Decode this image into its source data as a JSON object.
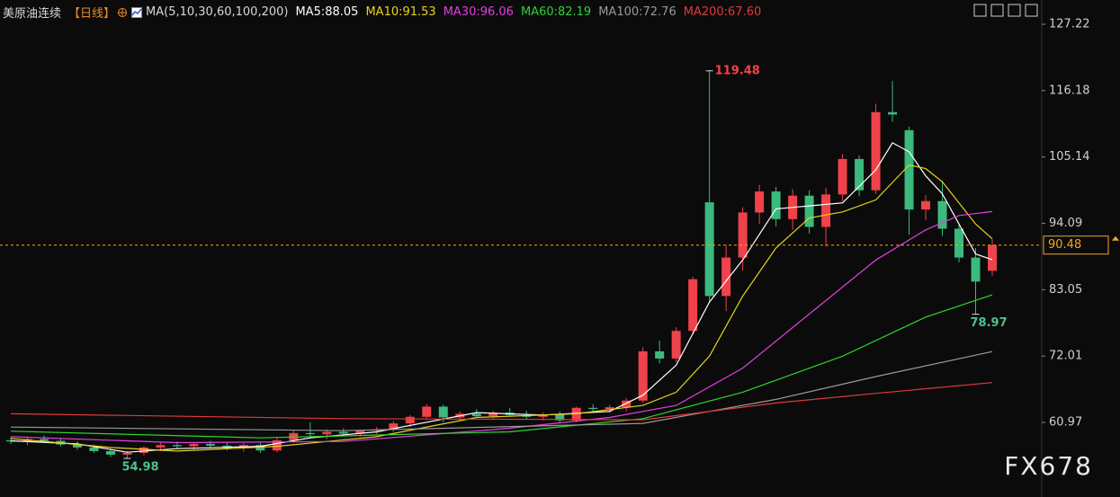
{
  "header": {
    "title": "美原油连续",
    "period": "【日线】",
    "ma_title": "MA(5,10,30,60,100,200)"
  },
  "chart_data": {
    "type": "candlestick",
    "categories": [
      null,
      null,
      null,
      null,
      null,
      null,
      null,
      null,
      null,
      null,
      null,
      null,
      null,
      null,
      null,
      null,
      null,
      null,
      null,
      null,
      null,
      null,
      null,
      null,
      null,
      null,
      null,
      null,
      null,
      null,
      null,
      null,
      null,
      null,
      null,
      null,
      null,
      null,
      null,
      null,
      null,
      null,
      null,
      null,
      null,
      null,
      null,
      null,
      null,
      null,
      null,
      null,
      null,
      null,
      null,
      null,
      null,
      null,
      null,
      null
    ],
    "open": [
      58.0,
      57.8,
      58.2,
      57.9,
      57.3,
      56.8,
      56.2,
      55.6,
      55.9,
      56.8,
      57.2,
      57.0,
      57.4,
      57.1,
      56.7,
      57.2,
      56.3,
      58.0,
      59.2,
      59.0,
      59.4,
      59.1,
      59.6,
      59.8,
      60.8,
      61.9,
      63.6,
      61.8,
      62.4,
      62.0,
      62.6,
      62.2,
      61.9,
      62.3,
      61.3,
      63.4,
      63.2,
      63.5,
      64.6,
      72.8,
      71.6,
      76.2,
      97.6,
      82.0,
      88.4,
      95.9,
      99.4,
      94.8,
      98.7,
      93.5,
      98.9,
      104.8,
      99.6,
      112.6,
      109.6,
      96.4,
      97.8,
      93.2,
      88.4,
      86.2
    ],
    "high": [
      58.5,
      58.6,
      58.8,
      58.4,
      57.8,
      57.2,
      56.6,
      56.2,
      57.0,
      57.6,
      57.8,
      57.6,
      57.9,
      57.6,
      57.5,
      57.6,
      58.4,
      59.6,
      61.0,
      59.8,
      60.0,
      59.8,
      60.2,
      61.2,
      62.2,
      64.0,
      63.9,
      62.8,
      63.2,
      62.9,
      63.4,
      62.9,
      62.6,
      62.8,
      63.6,
      64.0,
      63.9,
      65.0,
      73.5,
      74.6,
      76.8,
      85.2,
      119.48,
      90.5,
      96.8,
      100.5,
      100.2,
      99.8,
      99.6,
      100.0,
      105.6,
      105.4,
      114.0,
      117.8,
      110.2,
      98.8,
      101.2,
      94.0,
      90.0,
      91.4
    ],
    "low": [
      57.4,
      57.2,
      57.6,
      57.0,
      56.4,
      55.9,
      55.2,
      54.98,
      55.5,
      56.2,
      56.6,
      56.4,
      56.8,
      56.3,
      56.1,
      55.9,
      56.0,
      57.6,
      58.6,
      58.2,
      58.8,
      58.6,
      59.0,
      59.4,
      60.2,
      61.5,
      61.0,
      61.2,
      61.8,
      61.6,
      61.9,
      61.5,
      61.3,
      60.8,
      61.0,
      62.8,
      62.6,
      62.8,
      64.2,
      70.8,
      71.0,
      75.6,
      81.0,
      79.5,
      86.2,
      94.0,
      93.6,
      93.0,
      92.4,
      90.2,
      97.8,
      98.6,
      99.0,
      111.0,
      92.2,
      94.6,
      92.0,
      87.6,
      78.97,
      85.4
    ],
    "close": [
      57.8,
      58.2,
      57.9,
      57.3,
      56.8,
      56.2,
      55.6,
      55.9,
      56.8,
      57.2,
      57.0,
      57.4,
      57.1,
      56.7,
      57.2,
      56.3,
      58.0,
      59.2,
      59.0,
      59.4,
      59.1,
      59.6,
      59.8,
      60.8,
      61.9,
      63.6,
      61.8,
      62.4,
      62.0,
      62.6,
      62.2,
      61.9,
      62.3,
      61.3,
      63.4,
      63.2,
      63.5,
      64.6,
      72.8,
      71.6,
      76.2,
      84.8,
      82.0,
      88.4,
      95.9,
      99.4,
      94.8,
      98.7,
      93.5,
      98.9,
      104.8,
      99.6,
      112.6,
      112.2,
      96.4,
      97.8,
      93.2,
      88.4,
      84.4,
      90.48
    ],
    "up_color": "#f0424a",
    "down_color": "#3cb97d",
    "ylim": [
      51.25,
      128.57
    ],
    "yticks": [
      127.22,
      116.18,
      105.14,
      94.09,
      83.05,
      72.01,
      60.97
    ],
    "last_price": 90.48,
    "last_price_color": "#f5a623",
    "high_label": 119.48,
    "high_label_color": "#f0424a",
    "low_labels": [
      78.97,
      54.98
    ],
    "low_label_color": "#4fc08d",
    "series": [
      {
        "name": "MA5:88.05",
        "color": "#ffffff",
        "x": [
          0,
          4,
          7,
          10,
          15,
          18,
          22,
          25,
          28,
          32,
          36,
          38,
          40,
          42,
          44,
          46,
          48,
          50,
          52,
          53,
          54,
          55,
          56,
          57,
          58,
          59
        ],
        "values": [
          57.9,
          57.4,
          56.0,
          56.6,
          57.0,
          58.4,
          59.4,
          61.0,
          62.6,
          62.2,
          62.8,
          65.5,
          70.5,
          81,
          88,
          96.5,
          97,
          97.5,
          103,
          107.5,
          106,
          102,
          99,
          94,
          89,
          88.05
        ]
      },
      {
        "name": "MA10:91.53",
        "color": "#e8d21d",
        "x": [
          0,
          6,
          10,
          16,
          22,
          28,
          34,
          38,
          40,
          42,
          44,
          46,
          48,
          50,
          52,
          54,
          55,
          56,
          57,
          58,
          59
        ],
        "values": [
          58.3,
          56.8,
          56.2,
          57.0,
          58.6,
          61.8,
          62.4,
          63.8,
          66,
          72,
          82,
          90,
          95,
          96,
          98,
          103.8,
          103.2,
          101,
          97.5,
          94,
          91.53
        ]
      },
      {
        "name": "MA30:96.06",
        "color": "#e040e0",
        "x": [
          0,
          10,
          20,
          30,
          36,
          40,
          44,
          48,
          52,
          55,
          57,
          59
        ],
        "values": [
          58.6,
          57.6,
          57.8,
          60.0,
          61.8,
          63.8,
          70,
          79,
          88,
          93,
          95.4,
          96.06
        ]
      },
      {
        "name": "MA60:82.19",
        "color": "#2fd42f",
        "x": [
          0,
          15,
          30,
          38,
          44,
          50,
          55,
          59
        ],
        "values": [
          59.5,
          58.4,
          59.4,
          61.6,
          66,
          72,
          78.5,
          82.19
        ]
      },
      {
        "name": "MA100:72.76",
        "color": "#9a9a9a",
        "x": [
          0,
          20,
          38,
          46,
          52,
          59
        ],
        "values": [
          60.2,
          59.6,
          60.8,
          64.8,
          68.6,
          72.76
        ]
      },
      {
        "name": "MA200:67.60",
        "color": "#e03a3a",
        "x": [
          0,
          20,
          38,
          46,
          52,
          59
        ],
        "values": [
          62.4,
          61.6,
          61.4,
          64.2,
          65.8,
          67.6
        ]
      }
    ]
  },
  "watermark": "FX678"
}
